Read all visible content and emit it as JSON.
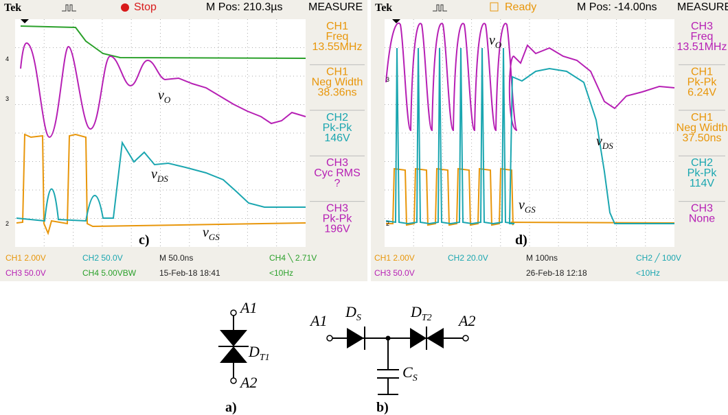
{
  "scopes": [
    {
      "header": {
        "brand": "Tek",
        "status": "Stop",
        "status_color": "#d81a1a",
        "position": "M Pos: 210.3µs",
        "measure": "MEASURE"
      },
      "markers": [
        "4",
        "3",
        "2"
      ],
      "measurements": [
        {
          "channel": "CH1",
          "name": "Freq",
          "value": "13.55MHz",
          "color": "#e8960a"
        },
        {
          "channel": "CH1",
          "name": "Neg Width",
          "value": "38.36ns",
          "color": "#e8960a"
        },
        {
          "channel": "CH2",
          "name": "Pk-Pk",
          "value": "146V",
          "color": "#1aa6b0"
        },
        {
          "channel": "CH3",
          "name": "Cyc RMS",
          "value": "?",
          "color": "#b61fb4"
        },
        {
          "channel": "CH3",
          "name": "Pk-Pk",
          "value": "196V",
          "color": "#b61fb4"
        }
      ],
      "traces": [
        {
          "main": "v",
          "sub": "O"
        },
        {
          "main": "v",
          "sub": "DS"
        },
        {
          "main": "v",
          "sub": "GS"
        }
      ],
      "panel_label": "c)",
      "footer": [
        [
          {
            "text": "CH1  2.00V",
            "color": "#e8960a"
          },
          {
            "text": "CH2  50.0V",
            "color": "#1aa6b0"
          },
          {
            "text": "M 50.0ns",
            "color": "#222"
          },
          {
            "text": "CH4 ╲ 2.71V",
            "color": "#2aa02a"
          }
        ],
        [
          {
            "text": "CH3  50.0V",
            "color": "#b61fb4"
          },
          {
            "text": "CH4  5.00VBW",
            "color": "#2aa02a"
          },
          {
            "text": "15-Feb-18 18:41",
            "color": "#222"
          },
          {
            "text": "<10Hz",
            "color": "#2aa02a"
          }
        ]
      ]
    },
    {
      "header": {
        "brand": "Tek",
        "status": "Ready",
        "status_color": "#e8960a",
        "position": "M Pos: -14.00ns",
        "measure": "MEASURE"
      },
      "markers": [
        "3",
        "2"
      ],
      "measurements": [
        {
          "channel": "CH3",
          "name": "Freq",
          "value": "13.51MHz",
          "color": "#b61fb4"
        },
        {
          "channel": "CH1",
          "name": "Pk-Pk",
          "value": "6.24V",
          "color": "#e8960a"
        },
        {
          "channel": "CH1",
          "name": "Neg Width",
          "value": "37.50ns",
          "color": "#e8960a"
        },
        {
          "channel": "CH2",
          "name": "Pk-Pk",
          "value": "114V",
          "color": "#1aa6b0"
        },
        {
          "channel": "CH3",
          "name": "None",
          "value": "",
          "color": "#b61fb4"
        }
      ],
      "traces": [
        {
          "main": "v",
          "sub": "O"
        },
        {
          "main": "v",
          "sub": "DS"
        },
        {
          "main": "v",
          "sub": "GS"
        }
      ],
      "panel_label": "d)",
      "footer": [
        [
          {
            "text": "CH1  2.00V",
            "color": "#e8960a"
          },
          {
            "text": "CH2  20.0V",
            "color": "#1aa6b0"
          },
          {
            "text": "M 100ns",
            "color": "#222"
          },
          {
            "text": "CH2 ╱ 100V",
            "color": "#1aa6b0"
          }
        ],
        [
          {
            "text": "CH3  50.0V",
            "color": "#b61fb4"
          },
          {
            "text": "26-Feb-18 12:18",
            "color": "#222"
          },
          {
            "text": "<10Hz",
            "color": "#1aa6b0"
          }
        ]
      ]
    }
  ],
  "circuits": {
    "a": {
      "top": "A1",
      "diode": {
        "main": "D",
        "sub": "T1"
      },
      "bottom": "A2",
      "panel_label": "a)"
    },
    "b": {
      "left": "A1",
      "ds": {
        "main": "D",
        "sub": "S"
      },
      "dt": {
        "main": "D",
        "sub": "T2"
      },
      "right": "A2",
      "cap": {
        "main": "C",
        "sub": "S"
      },
      "panel_label": "b)"
    }
  }
}
